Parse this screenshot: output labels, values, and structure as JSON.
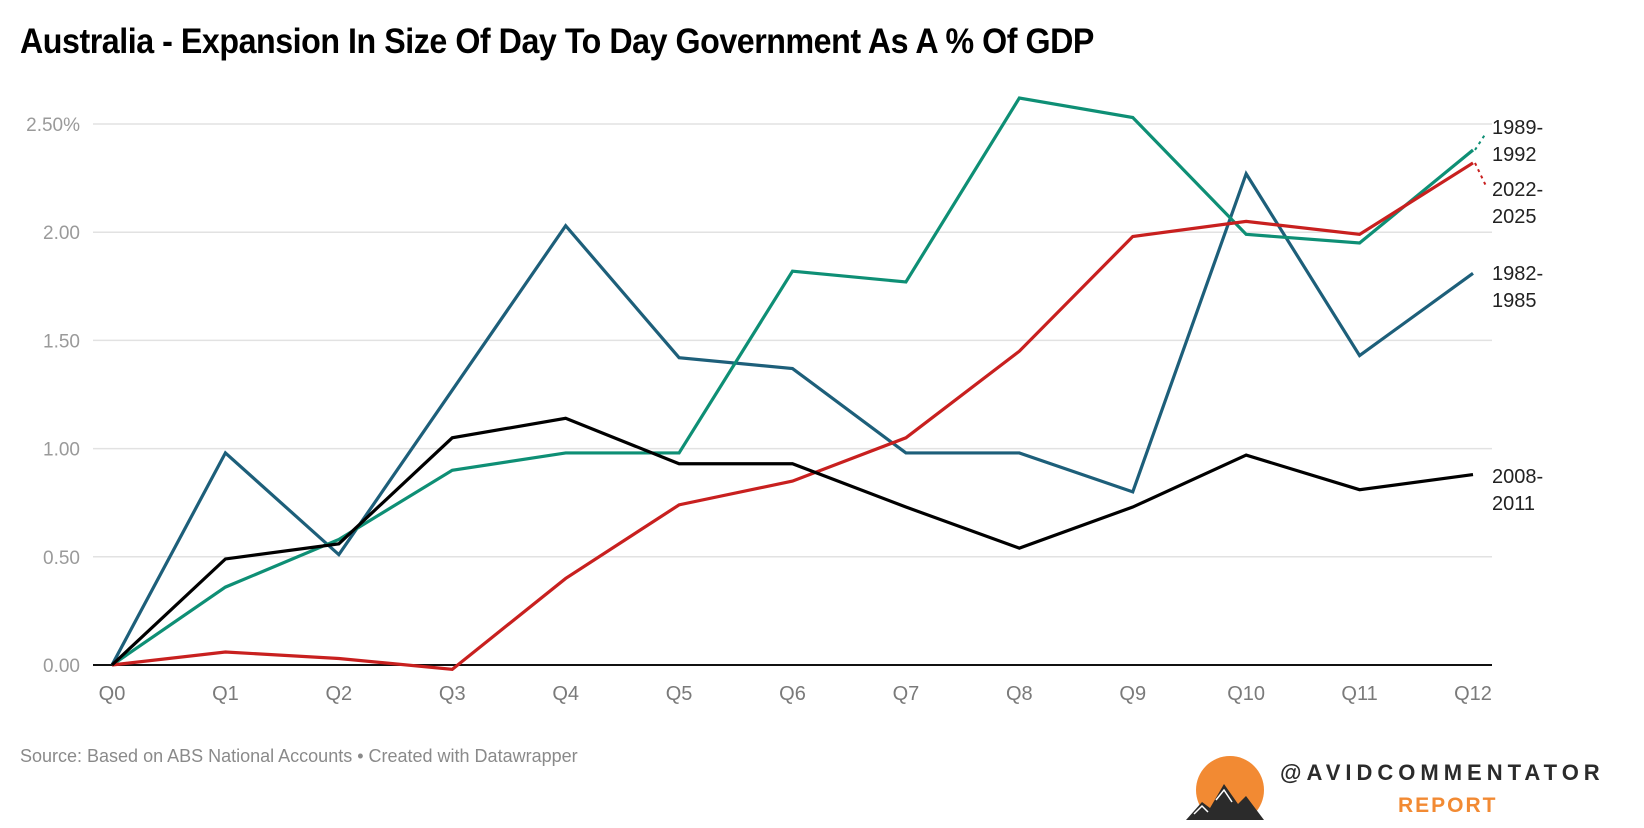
{
  "chart_data": {
    "type": "line",
    "title": "Australia - Expansion In Size Of Day To Day Government As A % Of GDP",
    "xlabel": "",
    "ylabel": "",
    "x": [
      "Q0",
      "Q1",
      "Q2",
      "Q3",
      "Q4",
      "Q5",
      "Q6",
      "Q7",
      "Q8",
      "Q9",
      "Q10",
      "Q11",
      "Q12"
    ],
    "ylim": [
      0,
      2.5
    ],
    "yticks": [
      0,
      0.5,
      1.0,
      1.5,
      2.0,
      2.5
    ],
    "ytick_labels": [
      "0.00",
      "0.50",
      "1.00",
      "1.50",
      "2.00",
      "2.50%"
    ],
    "grid": true,
    "legend": "direct-labels-right",
    "series": [
      {
        "name": "1982-1985",
        "label_lines": [
          "1982-",
          "1985"
        ],
        "color": "#1d5f7a",
        "values": [
          0,
          0.98,
          0.51,
          1.27,
          2.03,
          1.42,
          1.37,
          0.98,
          0.98,
          0.8,
          2.27,
          1.43,
          1.81
        ]
      },
      {
        "name": "1989-1992",
        "label_lines": [
          "1989-",
          "1992"
        ],
        "color": "#0e8f75",
        "values": [
          0,
          0.36,
          0.58,
          0.9,
          0.98,
          0.98,
          1.82,
          1.77,
          2.62,
          2.53,
          1.99,
          1.95,
          2.38
        ]
      },
      {
        "name": "2008-2011",
        "label_lines": [
          "2008-",
          "2011"
        ],
        "color": "#000000",
        "values": [
          0,
          0.49,
          0.56,
          1.05,
          1.14,
          0.93,
          0.93,
          0.73,
          0.54,
          0.73,
          0.97,
          0.81,
          0.88
        ]
      },
      {
        "name": "2022-2025",
        "label_lines": [
          "2022-",
          "2025"
        ],
        "color": "#c8201f",
        "values": [
          0,
          0.06,
          0.03,
          -0.02,
          0.4,
          0.74,
          0.85,
          1.05,
          1.45,
          1.98,
          2.05,
          1.99,
          2.32
        ]
      }
    ]
  },
  "footer": {
    "source": "Source: Based on ABS National Accounts • Created with Datawrapper"
  },
  "logo": {
    "handle": "@AVIDCOMMENTATOR",
    "subtitle": "REPORT",
    "icon": "mountain-sun-icon",
    "accent_color": "#f28a33"
  }
}
